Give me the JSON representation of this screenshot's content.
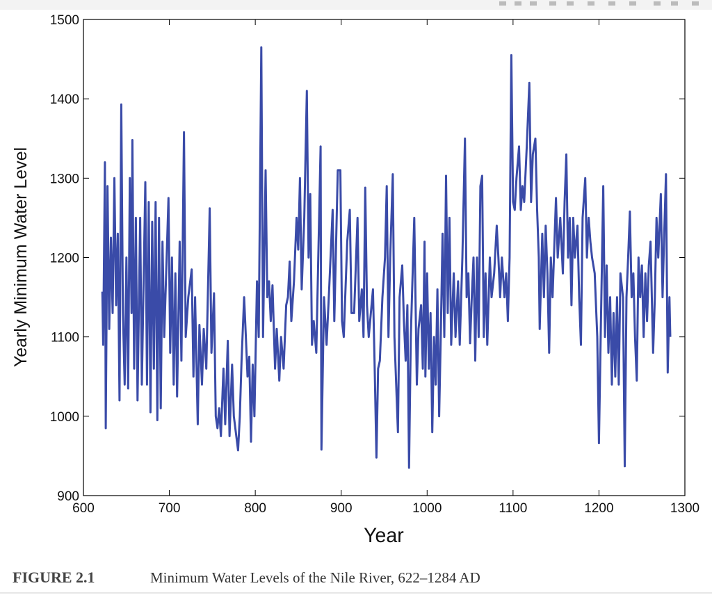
{
  "chart_data": {
    "type": "line",
    "xlabel": "Year",
    "ylabel": "Yearly Minimum Water Level",
    "caption_label": "FIGURE 2.1",
    "caption_text": "Minimum Water Levels of the Nile River, 622–1284 AD",
    "xlim": [
      600,
      1300
    ],
    "xticks": [
      600,
      700,
      800,
      900,
      1000,
      1100,
      1200,
      1300
    ],
    "ylim": [
      900,
      1500
    ],
    "yticks": [
      900,
      1000,
      1100,
      1200,
      1300,
      1400,
      1500
    ],
    "series": [
      {
        "color": "#3a4ba8",
        "x": [
          622,
          623,
          625,
          626,
          628,
          630,
          632,
          634,
          636,
          638,
          640,
          642,
          644,
          646,
          648,
          650,
          652,
          654,
          656,
          657,
          659,
          661,
          663,
          666,
          668,
          672,
          674,
          676,
          678,
          680,
          682,
          684,
          686,
          688,
          690,
          692,
          694,
          699,
          701,
          703,
          705,
          707,
          709,
          712,
          714,
          717,
          719,
          722,
          726,
          728,
          730,
          733,
          735,
          738,
          740,
          743,
          747,
          749,
          752,
          754,
          756,
          758,
          760,
          763,
          765,
          768,
          770,
          773,
          775,
          780,
          782,
          784,
          787,
          789,
          791,
          793,
          795,
          797,
          799,
          802,
          804,
          807,
          809,
          812,
          814,
          816,
          818,
          820,
          823,
          825,
          828,
          830,
          833,
          836,
          838,
          840,
          842,
          845,
          848,
          850,
          852,
          854,
          857,
          860,
          862,
          864,
          866,
          868,
          871,
          876,
          877,
          880,
          883,
          886,
          890,
          892,
          896,
          899,
          901,
          903,
          907,
          910,
          912,
          915,
          919,
          921,
          924,
          926,
          928,
          930,
          932,
          937,
          939,
          941,
          943,
          945,
          948,
          951,
          953,
          955,
          957,
          960,
          962,
          964,
          966,
          968,
          971,
          973,
          975,
          977,
          979,
          981,
          985,
          988,
          990,
          993,
          995,
          997,
          998,
          1000,
          1002,
          1004,
          1006,
          1008,
          1010,
          1012,
          1014,
          1016,
          1018,
          1020,
          1022,
          1024,
          1026,
          1028,
          1031,
          1033,
          1036,
          1038,
          1041,
          1044,
          1046,
          1048,
          1050,
          1052,
          1054,
          1056,
          1058,
          1060,
          1062,
          1064,
          1066,
          1068,
          1070,
          1073,
          1075,
          1078,
          1081,
          1083,
          1085,
          1087,
          1090,
          1092,
          1094,
          1096,
          1098,
          1100,
          1102,
          1104,
          1107,
          1109,
          1111,
          1113,
          1116,
          1119,
          1121,
          1123,
          1126,
          1128,
          1130,
          1131,
          1134,
          1136,
          1138,
          1140,
          1142,
          1144,
          1146,
          1150,
          1152,
          1155,
          1158,
          1160,
          1162,
          1164,
          1166,
          1168,
          1170,
          1172,
          1175,
          1177,
          1179,
          1181,
          1184,
          1186,
          1188,
          1190,
          1192,
          1195,
          1198,
          1200,
          1202,
          1205,
          1207,
          1209,
          1211,
          1213,
          1215,
          1217,
          1219,
          1221,
          1223,
          1225,
          1228,
          1230,
          1232,
          1234,
          1236,
          1238,
          1240,
          1242,
          1244,
          1246,
          1248,
          1250,
          1252,
          1254,
          1256,
          1258,
          1260,
          1263,
          1265,
          1267,
          1269,
          1272,
          1274,
          1276,
          1278,
          1280,
          1282,
          1283
        ],
        "values": [
          1157,
          1090,
          1320,
          985,
          1290,
          1110,
          1225,
          1130,
          1300,
          1140,
          1230,
          1020,
          1393,
          1130,
          1040,
          1200,
          1035,
          1300,
          1130,
          1348,
          1060,
          1250,
          1020,
          1250,
          1040,
          1295,
          1040,
          1270,
          1005,
          1245,
          1060,
          1270,
          995,
          1250,
          1010,
          1220,
          1100,
          1275,
          1080,
          1200,
          1040,
          1180,
          1025,
          1220,
          1070,
          1358,
          1100,
          1150,
          1185,
          1050,
          1150,
          990,
          1115,
          1040,
          1110,
          1060,
          1262,
          1080,
          1155,
          1000,
          985,
          1010,
          975,
          1060,
          990,
          1095,
          975,
          1065,
          1000,
          957,
          1000,
          1070,
          1150,
          1100,
          1050,
          1075,
          968,
          1065,
          1000,
          1170,
          1100,
          1465,
          1100,
          1310,
          1150,
          1170,
          1120,
          1165,
          1060,
          1110,
          1045,
          1100,
          1060,
          1140,
          1150,
          1195,
          1120,
          1170,
          1250,
          1210,
          1300,
          1160,
          1250,
          1410,
          1200,
          1280,
          1090,
          1120,
          1080,
          1340,
          958,
          1150,
          1090,
          1160,
          1260,
          1120,
          1310,
          1310,
          1120,
          1100,
          1220,
          1260,
          1130,
          1130,
          1250,
          1120,
          1160,
          1100,
          1288,
          1140,
          1100,
          1160,
          1060,
          948,
          1060,
          1070,
          1150,
          1200,
          1290,
          1100,
          1200,
          1305,
          1100,
          1040,
          980,
          1150,
          1190,
          1120,
          1070,
          1140,
          935,
          1100,
          1250,
          1040,
          1110,
          1140,
          1060,
          1220,
          1050,
          1180,
          1060,
          1130,
          980,
          1100,
          1040,
          1160,
          1000,
          1110,
          1230,
          1100,
          1303,
          1130,
          1250,
          1090,
          1180,
          1100,
          1170,
          1090,
          1200,
          1350,
          1150,
          1180,
          1092,
          1150,
          1200,
          1070,
          1200,
          1100,
          1290,
          1303,
          1100,
          1180,
          1090,
          1200,
          1150,
          1180,
          1240,
          1200,
          1150,
          1200,
          1150,
          1180,
          1120,
          1200,
          1455,
          1270,
          1260,
          1300,
          1340,
          1260,
          1290,
          1270,
          1340,
          1420,
          1270,
          1330,
          1350,
          1260,
          1200,
          1110,
          1230,
          1150,
          1240,
          1180,
          1080,
          1200,
          1150,
          1275,
          1200,
          1250,
          1180,
          1270,
          1330,
          1200,
          1250,
          1140,
          1250,
          1200,
          1240,
          1150,
          1090,
          1250,
          1300,
          1200,
          1250,
          1220,
          1200,
          1180,
          1100,
          966,
          1100,
          1290,
          1100,
          1190,
          1080,
          1150,
          1040,
          1130,
          1050,
          1150,
          1040,
          1180,
          1150,
          937,
          1150,
          1200,
          1258,
          1150,
          1180,
          1100,
          1045,
          1200,
          1150,
          1190,
          1100,
          1180,
          1120,
          1190,
          1220,
          1080,
          1150,
          1250,
          1200,
          1280,
          1150,
          1230,
          1305,
          1055,
          1150,
          1100
        ]
      }
    ]
  }
}
